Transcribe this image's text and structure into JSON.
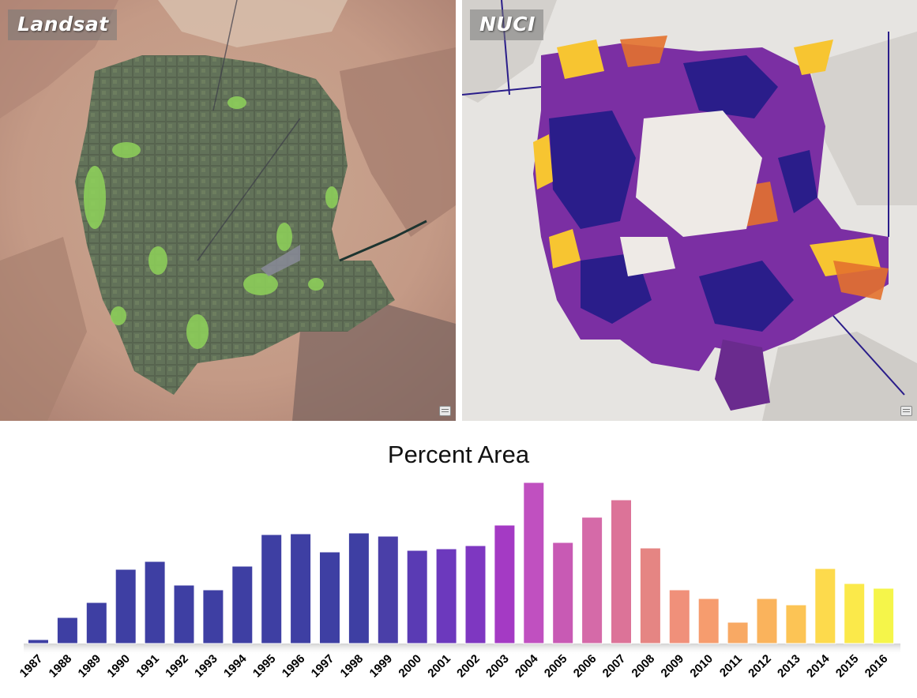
{
  "panels": {
    "landsat": {
      "label": "Landsat"
    },
    "nuci": {
      "label": "NUCI"
    }
  },
  "chart_data": {
    "type": "bar",
    "title": "Percent Area",
    "xlabel": "",
    "ylabel": "",
    "categories": [
      "1987",
      "1988",
      "1989",
      "1990",
      "1991",
      "1992",
      "1993",
      "1994",
      "1995",
      "1996",
      "1997",
      "1998",
      "1999",
      "2000",
      "2001",
      "2002",
      "2003",
      "2004",
      "2005",
      "2006",
      "2007",
      "2008",
      "2009",
      "2010",
      "2011",
      "2012",
      "2013",
      "2014",
      "2015",
      "2016"
    ],
    "values": [
      5,
      33,
      52,
      94,
      104,
      74,
      68,
      98,
      138,
      139,
      116,
      140,
      136,
      118,
      120,
      124,
      150,
      204,
      128,
      160,
      182,
      121,
      68,
      57,
      27,
      57,
      49,
      95,
      76,
      70
    ],
    "bar_colors": [
      "#3e3fa3",
      "#3e3fa3",
      "#3e3fa3",
      "#3e3fa3",
      "#3e3fa3",
      "#3e3fa3",
      "#3e3fa3",
      "#3e3fa3",
      "#3e3fa3",
      "#3e3fa3",
      "#3e3fa3",
      "#3e3fa3",
      "#4a3fa8",
      "#5a3bb4",
      "#6c39bd",
      "#7e37c1",
      "#a43ac4",
      "#c050c0",
      "#c85ab4",
      "#d56aa8",
      "#dc7398",
      "#e58583",
      "#f0907a",
      "#f69c6e",
      "#f8a964",
      "#fab35c",
      "#fcc455",
      "#fdda4c",
      "#fbe94a",
      "#f5f54a"
    ],
    "ylim": [
      0,
      210
    ],
    "grid": false,
    "legend": "none"
  }
}
